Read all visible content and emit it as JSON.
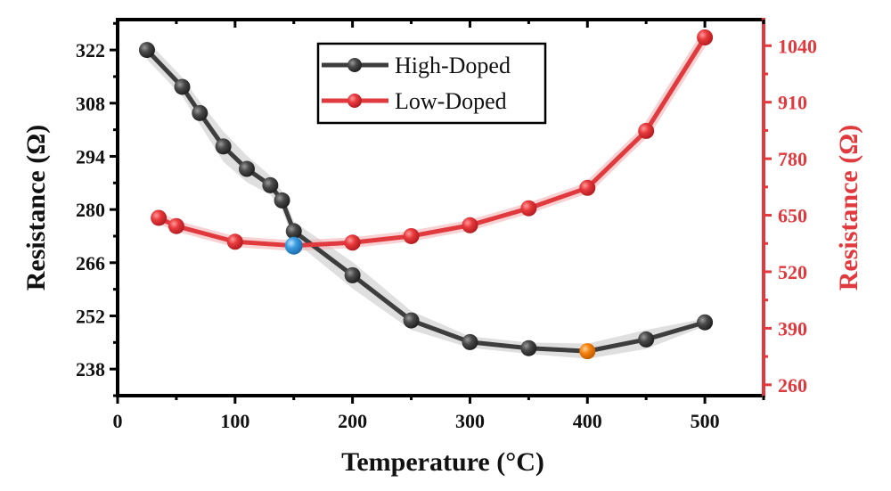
{
  "chart_data": {
    "type": "line",
    "title": "",
    "xlabel": "Temperature (°C)",
    "ylabel": "Resistance (Ω)",
    "y2label": "Resistance (Ω)",
    "xlim": [
      0,
      550
    ],
    "ylim": [
      231,
      330
    ],
    "y2lim": [
      235,
      1100
    ],
    "xticks": [
      0,
      100,
      200,
      300,
      400,
      500
    ],
    "xtick_labels": [
      "0",
      "100",
      "200",
      "300",
      "400",
      "500"
    ],
    "yticks": [
      238,
      252,
      266,
      280,
      294,
      308,
      322
    ],
    "ytick_labels": [
      "238",
      "252",
      "266",
      "280",
      "294",
      "308",
      "322"
    ],
    "y2ticks": [
      260,
      390,
      520,
      650,
      780,
      910,
      1040
    ],
    "y2tick_labels": [
      "260",
      "390",
      "520",
      "650",
      "780",
      "910",
      "1040"
    ],
    "grid": false,
    "legend_position": "top-center",
    "colors": {
      "high": "#3d3d3d",
      "low": "#e0393e",
      "band": "#d9d9d9",
      "axis2": "#e0393e",
      "highlight_blue": "#3a9be0",
      "highlight_orange": "#f5820f"
    },
    "series": [
      {
        "name": "High-Doped",
        "axis": "left",
        "x": [
          25,
          55,
          70,
          90,
          110,
          130,
          140,
          150,
          200,
          250,
          300,
          350,
          400,
          450,
          500
        ],
        "values": [
          322.0,
          312.3,
          305.4,
          296.6,
          290.7,
          286.4,
          282.4,
          274.3,
          262.7,
          250.8,
          245.1,
          243.5,
          242.7,
          245.8,
          250.3
        ],
        "band": [
          2.5,
          2.5,
          3.0,
          4.0,
          3.5,
          2.5,
          2.5,
          2.5,
          3.5,
          2.5,
          1.5,
          1.5,
          2.0,
          2.5,
          1.0
        ]
      },
      {
        "name": "Low-Doped",
        "axis": "right",
        "x": [
          35,
          50,
          100,
          150,
          200,
          250,
          300,
          350,
          400,
          450,
          500
        ],
        "values": [
          644,
          625,
          589,
          580,
          587,
          602,
          627,
          666,
          713,
          844,
          1059
        ]
      }
    ],
    "annotations": [
      {
        "type": "highlight-point",
        "series": "Low-Doped",
        "x": 150,
        "value": 580,
        "color": "blue"
      },
      {
        "type": "highlight-point",
        "series": "High-Doped",
        "x": 400,
        "value": 242.7,
        "color": "orange"
      }
    ]
  }
}
